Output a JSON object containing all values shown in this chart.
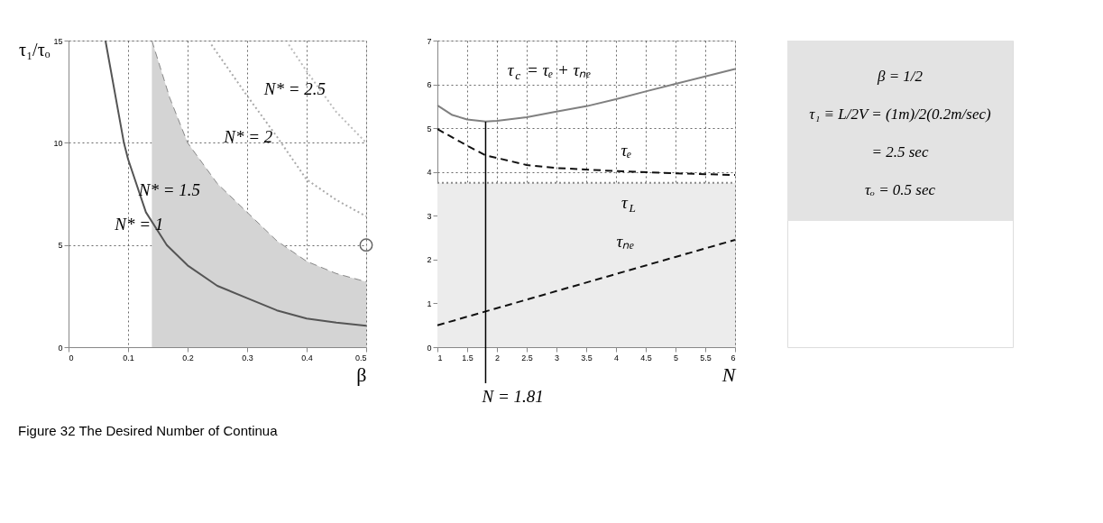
{
  "chart_data": [
    {
      "type": "line",
      "xlabel": "β",
      "ylabel": "τ₁/τₒ",
      "xlim": [
        0,
        0.5
      ],
      "ylim": [
        0,
        15
      ],
      "xticks": [
        0,
        0.1,
        0.2,
        0.3,
        0.4,
        0.5
      ],
      "yticks": [
        0,
        5,
        10,
        15
      ],
      "grid": true,
      "series": [
        {
          "name": "N* = 1",
          "color": "#555555",
          "line_style": "solid",
          "x": [
            0.062,
            0.093,
            0.1,
            0.13,
            0.165,
            0.2,
            0.25,
            0.3,
            0.35,
            0.4,
            0.45,
            0.5
          ],
          "values": [
            15,
            10,
            9.2,
            6.6,
            5,
            4.0,
            3.0,
            2.4,
            1.8,
            1.4,
            1.2,
            1.05
          ]
        },
        {
          "name": "N* = 1.5",
          "type": "area",
          "color": "#d4d4d4",
          "line_style": "dashed",
          "x": [
            0.14,
            0.17,
            0.2,
            0.25,
            0.3,
            0.35,
            0.4,
            0.45,
            0.5
          ],
          "values": [
            15,
            12.2,
            10,
            8,
            6.6,
            5.2,
            4.2,
            3.6,
            3.2
          ]
        },
        {
          "name": "N* = 2",
          "color": "#aaaaaa",
          "line_style": "dotted",
          "x": [
            0.24,
            0.3,
            0.35,
            0.4,
            0.45,
            0.5
          ],
          "values": [
            14.8,
            12.3,
            10.3,
            8.2,
            7.2,
            6.4
          ]
        },
        {
          "name": "N* = 2.5",
          "color": "#bbbbbb",
          "line_style": "dotted",
          "x": [
            0.37,
            0.4,
            0.45,
            0.5
          ],
          "values": [
            14.8,
            13.5,
            11.5,
            10.0
          ]
        },
        {
          "type": "scatter",
          "marker": "circle",
          "color": "#666666",
          "x": [
            0.5
          ],
          "values": [
            5
          ]
        }
      ]
    },
    {
      "type": "line",
      "xlabel": "N",
      "xlim": [
        1,
        6
      ],
      "ylim": [
        0,
        7
      ],
      "xticks": [
        1,
        1.5,
        2,
        2.5,
        3,
        3.5,
        4,
        4.5,
        5,
        5.5,
        6
      ],
      "yticks": [
        0,
        1,
        2,
        3,
        4,
        5,
        6,
        7
      ],
      "grid": true,
      "series": [
        {
          "name": "τ$_{c}$ = τₑ + τₙₑ",
          "color": "#808080",
          "line_style": "solid",
          "x": [
            1,
            1.25,
            1.5,
            1.81,
            2,
            2.5,
            3,
            3.5,
            4,
            4.5,
            5,
            5.5,
            6
          ],
          "values": [
            5.52,
            5.3,
            5.2,
            5.15,
            5.17,
            5.25,
            5.38,
            5.5,
            5.66,
            5.84,
            6.01,
            6.18,
            6.35
          ]
        },
        {
          "name": "τₑ",
          "color": "#111111",
          "line_style": "dashed",
          "x": [
            1,
            1.5,
            1.81,
            2,
            2.5,
            3,
            4,
            5,
            6
          ],
          "values": [
            4.98,
            4.6,
            4.38,
            4.32,
            4.16,
            4.09,
            4.02,
            3.97,
            3.93
          ]
        },
        {
          "name": "τ$_{L}$",
          "color": "#888888",
          "line_style": "dotted",
          "x": [
            1,
            6
          ],
          "values": [
            3.75,
            3.75
          ]
        },
        {
          "name": "τₙₑ",
          "color": "#111111",
          "line_style": "dashed",
          "x": [
            1,
            2,
            3,
            4,
            5,
            6
          ],
          "values": [
            0.5,
            0.89,
            1.28,
            1.67,
            2.06,
            2.45
          ]
        }
      ],
      "bands": [
        {
          "axis": "y",
          "from": 0,
          "to": 3.75,
          "color": "#ececec"
        }
      ],
      "ref_lines": [
        {
          "axis": "x",
          "value": 1.81,
          "label": "N = 1.81",
          "color": "#000000"
        }
      ]
    },
    {
      "type": "other",
      "color": "#e3e3e3",
      "title": "Figure 32   The Desired Number of Continua",
      "annotations": [
        "β = 1/2",
        "τ₁ ≡ L/2V = (1m)/2(0.2m/sec)",
        "= 2.5 sec",
        "τₒ = 0.5 sec"
      ]
    }
  ]
}
